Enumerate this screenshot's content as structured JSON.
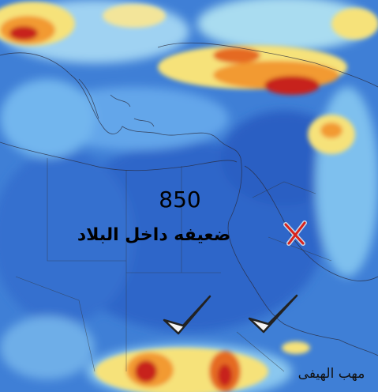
{
  "map": {
    "level": 850,
    "caption": "ضعيفه داخل البلاد",
    "signature": "مهب الهيفى"
  }
}
